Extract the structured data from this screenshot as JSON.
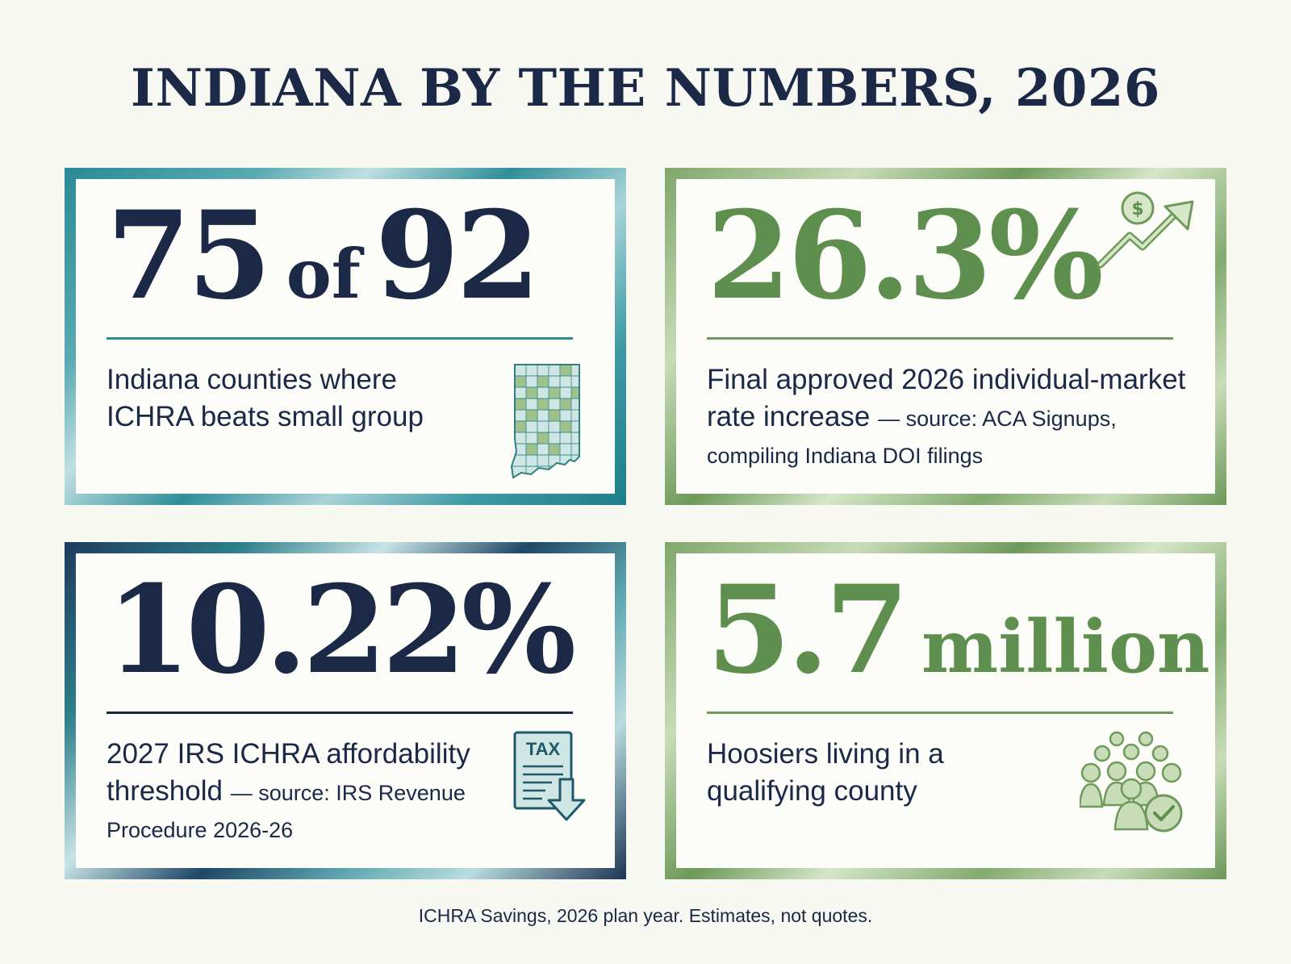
{
  "title": "INDIANA BY THE NUMBERS, 2026",
  "colors": {
    "navy": "#1b2947",
    "teal": "#2a8a96",
    "green": "#5f8f4e",
    "background": "#f7f8f1"
  },
  "cards": [
    {
      "stat_main": "75",
      "stat_mid": "of",
      "stat_end": "92",
      "desc": "Indiana counties where ICHRA beats small group",
      "icon": "indiana-county-map-icon"
    },
    {
      "stat": "26.3%",
      "desc": "Final approved 2026 individual-market rate increase",
      "source": "— source: ACA Signups, compiling Indiana DOI filings",
      "icon": "rising-cost-arrow-icon"
    },
    {
      "stat": "10.22%",
      "desc": "2027 IRS ICHRA affordability threshold",
      "source": "— source: IRS Revenue Procedure 2026-26",
      "icon": "tax-document-icon",
      "icon_label": "TAX"
    },
    {
      "stat_number": "5.7",
      "stat_unit": "million",
      "desc": "Hoosiers living in a qualifying county",
      "icon": "people-group-check-icon"
    }
  ],
  "footer": "ICHRA Savings, 2026 plan year. Estimates, not quotes."
}
